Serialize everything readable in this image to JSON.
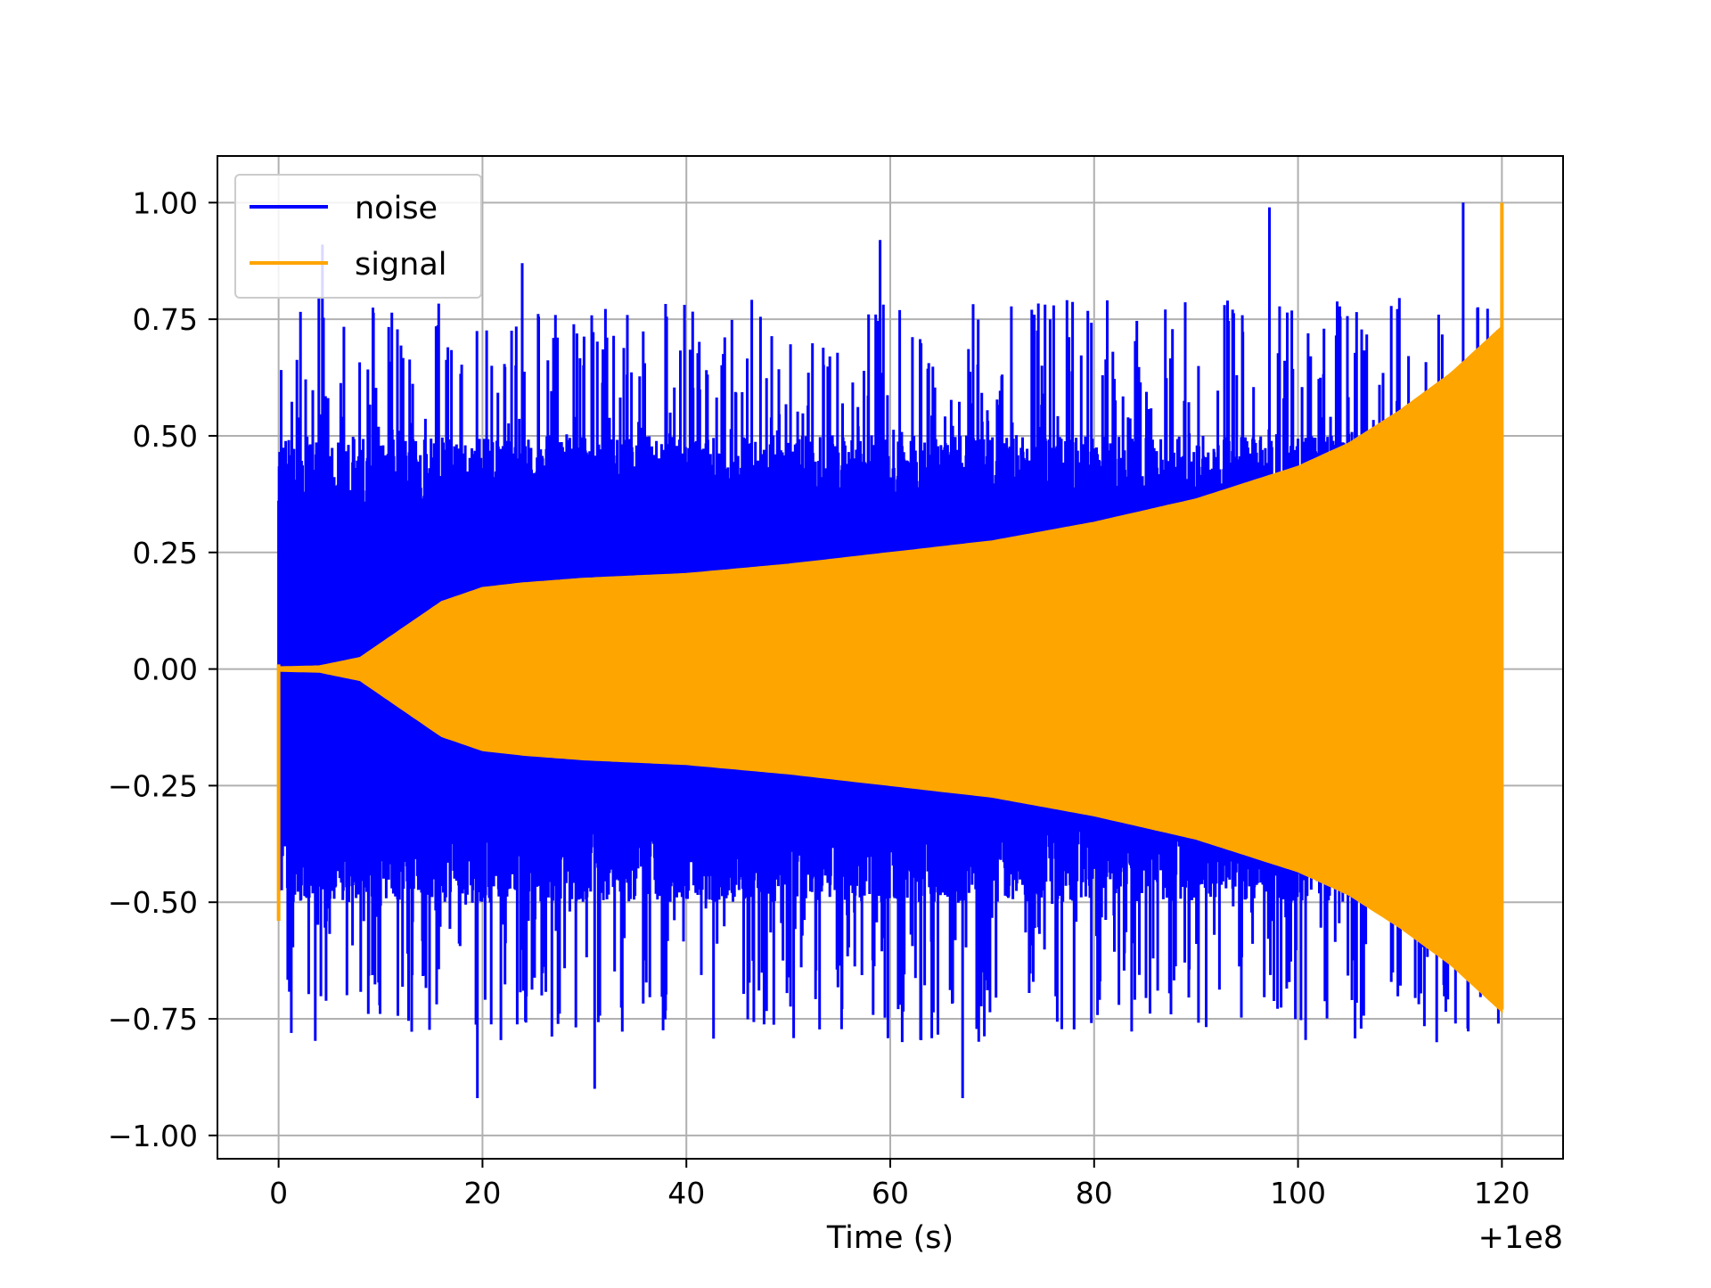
{
  "chart_data": {
    "type": "line",
    "title": "",
    "xlabel": "Time (s)",
    "ylabel": "",
    "x_offset_label": "+1e8",
    "xlim": [
      -6,
      126
    ],
    "ylim": [
      -1.05,
      1.1
    ],
    "xticks": [
      0,
      20,
      40,
      60,
      80,
      100,
      120
    ],
    "xtick_labels": [
      "0",
      "20",
      "40",
      "60",
      "80",
      "100",
      "120"
    ],
    "yticks": [
      1.0,
      0.75,
      0.5,
      0.25,
      0.0,
      -0.25,
      -0.5,
      -0.75,
      -1.0
    ],
    "ytick_labels": [
      "1.00",
      "0.75",
      "0.50",
      "0.25",
      "0.00",
      "−0.25",
      "−0.50",
      "−0.75",
      "−1.00"
    ],
    "grid": true,
    "legend_position": "top-left",
    "series": [
      {
        "name": "noise",
        "color": "#0000ff",
        "x_range": [
          0,
          120
        ],
        "typical_band": [
          -0.45,
          0.45
        ],
        "peaks": [
          {
            "x": 4.3,
            "y": 0.91
          },
          {
            "x": 23.9,
            "y": 0.87
          },
          {
            "x": 59.0,
            "y": 0.92
          },
          {
            "x": 97.2,
            "y": 0.99
          },
          {
            "x": 116.2,
            "y": 1.0
          },
          {
            "x": 19.5,
            "y": -0.92
          },
          {
            "x": 31.0,
            "y": -0.9
          },
          {
            "x": 67.1,
            "y": -0.92
          },
          {
            "x": 113.6,
            "y": -0.8
          }
        ]
      },
      {
        "name": "signal",
        "color": "#ffa500",
        "x_range": [
          0,
          120
        ],
        "envelope": {
          "t": [
            0,
            4,
            8,
            12,
            16,
            20,
            24,
            30,
            40,
            50,
            60,
            70,
            80,
            90,
            100,
            105,
            110,
            115,
            118,
            120
          ],
          "amplitude": [
            0.0,
            0.002,
            0.02,
            0.08,
            0.14,
            0.17,
            0.18,
            0.19,
            0.2,
            0.22,
            0.245,
            0.27,
            0.31,
            0.36,
            0.43,
            0.48,
            0.55,
            0.63,
            0.69,
            0.73
          ]
        },
        "end_spike": {
          "x": 120,
          "y": 1.0
        },
        "start_spike": {
          "x": 0,
          "y": -0.54
        }
      }
    ]
  }
}
